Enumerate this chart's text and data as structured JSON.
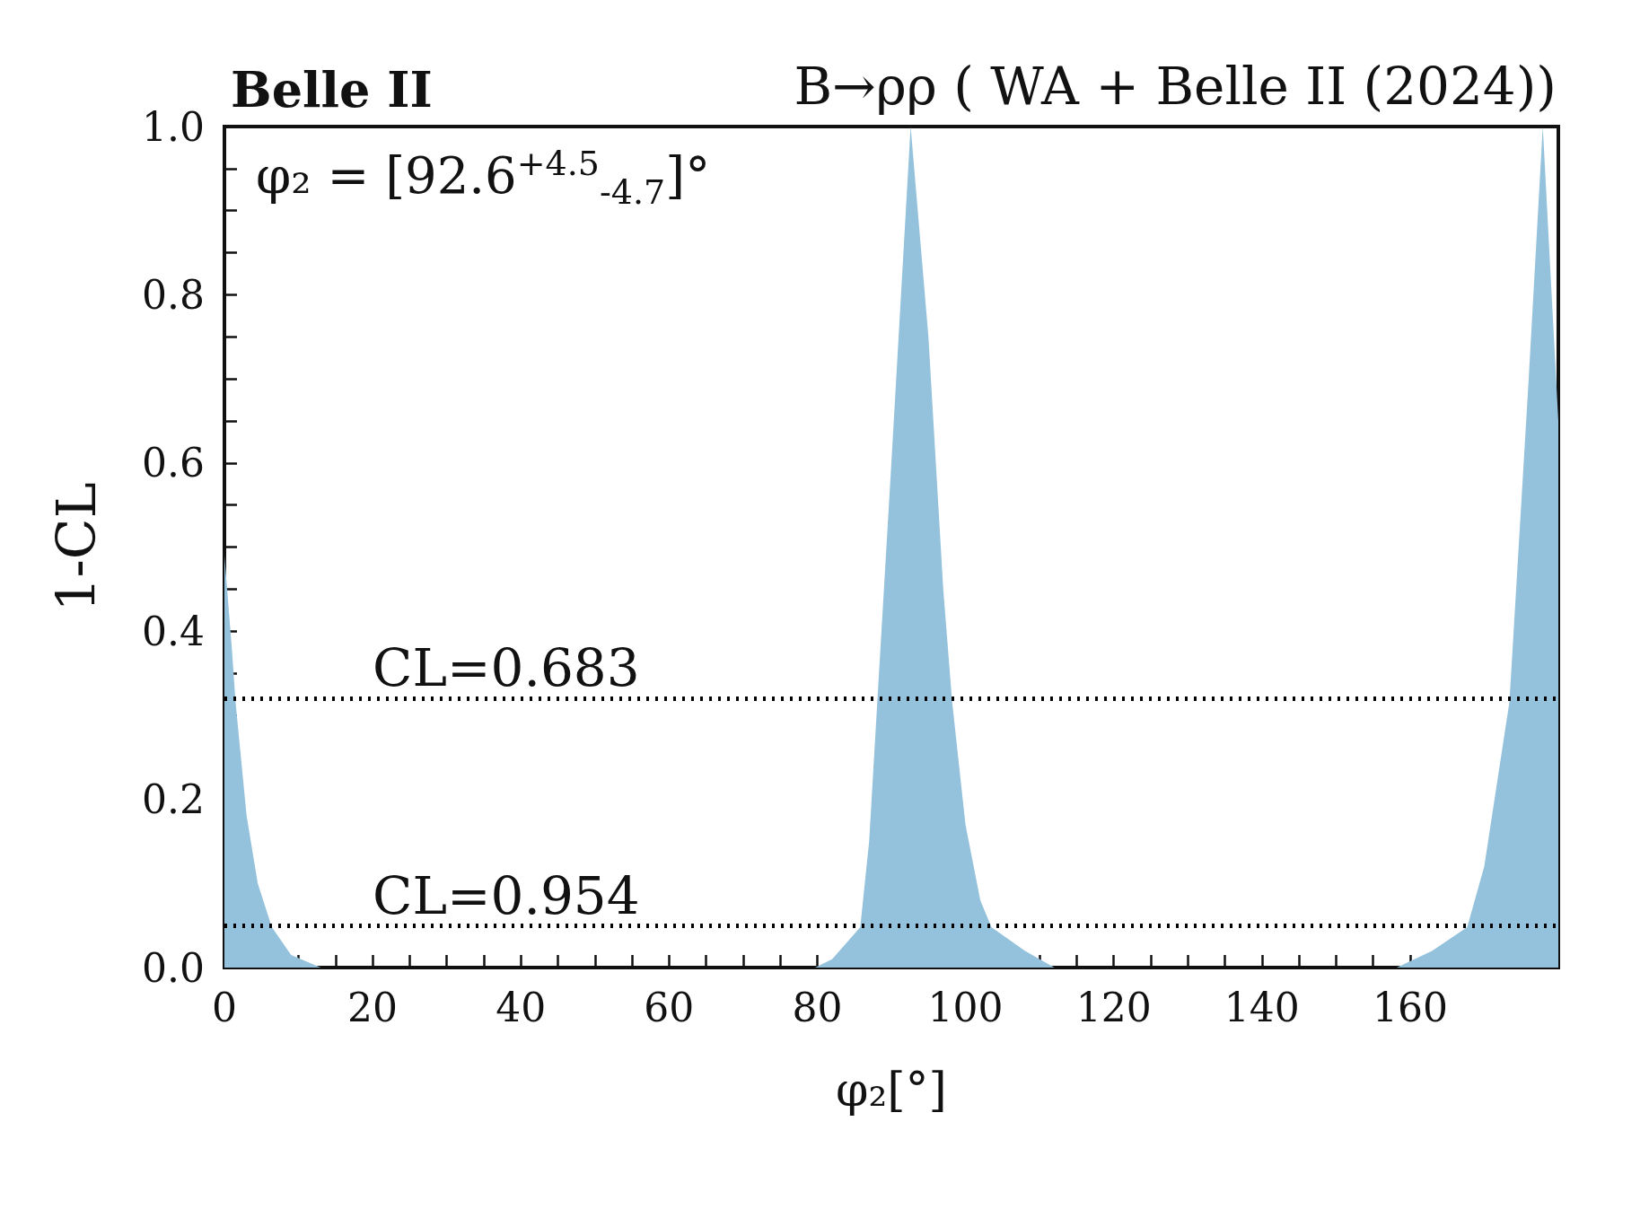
{
  "chart_data": {
    "type": "area",
    "title": "Belle II",
    "subtitle": "B→ρρ ( WA + Belle II (2024))",
    "xlabel": "φ₂[°]",
    "ylabel": "1-CL",
    "annotations": [
      "φ₂ = [92.6$^{+4.5}$$_{-4.7}$]°",
      {
        "text": "CL=0.683",
        "x": 20,
        "y": 0.317
      },
      {
        "text": "CL=0.954",
        "x": 20,
        "y": 0.046
      }
    ],
    "x": [
      0,
      1,
      1.5,
      3,
      4.5,
      6.4,
      9,
      13,
      79.7,
      82,
      84,
      85.8,
      87,
      88.1,
      90,
      92.6,
      95,
      97,
      98.2,
      100,
      102,
      103.5,
      108,
      112,
      158.2,
      163,
      167.7,
      170,
      173.4,
      176,
      177.9,
      180
    ],
    "series": [
      {
        "color": "#94c2dc",
        "values": [
          0.49,
          0.38,
          0.316,
          0.18,
          0.1,
          0.048,
          0.015,
          0,
          0,
          0.01,
          0.03,
          0.048,
          0.15,
          0.316,
          0.6,
          1.0,
          0.75,
          0.45,
          0.316,
          0.17,
          0.08,
          0.048,
          0.02,
          0,
          0,
          0.02,
          0.048,
          0.12,
          0.316,
          0.7,
          1.0,
          0.65
        ]
      }
    ],
    "xlim": [
      0,
      180
    ],
    "xticks": [
      0,
      {
        "value": 5,
        "label": null
      },
      {
        "value": 10,
        "label": null
      },
      {
        "value": 15,
        "label": null
      },
      20,
      {
        "value": 25,
        "label": null
      },
      {
        "value": 30,
        "label": null
      },
      {
        "value": 35,
        "label": null
      },
      40,
      {
        "value": 45,
        "label": null
      },
      {
        "value": 50,
        "label": null
      },
      {
        "value": 55,
        "label": null
      },
      60,
      {
        "value": 65,
        "label": null
      },
      {
        "value": 70,
        "label": null
      },
      {
        "value": 75,
        "label": null
      },
      80,
      {
        "value": 85,
        "label": null
      },
      {
        "value": 90,
        "label": null
      },
      {
        "value": 95,
        "label": null
      },
      100,
      {
        "value": 105,
        "label": null
      },
      {
        "value": 110,
        "label": null
      },
      {
        "value": 115,
        "label": null
      },
      120,
      {
        "value": 125,
        "label": null
      },
      {
        "value": 130,
        "label": null
      },
      {
        "value": 135,
        "label": null
      },
      140,
      {
        "value": 145,
        "label": null
      },
      {
        "value": 150,
        "label": null
      },
      {
        "value": 155,
        "label": null
      },
      160,
      {
        "value": 165,
        "label": null
      },
      {
        "value": 170,
        "label": null
      },
      {
        "value": 175,
        "label": null
      }
    ],
    "ylim": [
      0,
      1
    ],
    "yticks": [
      {
        "value": 0,
        "label": "0.0"
      },
      {
        "value": 0.05,
        "label": null
      },
      {
        "value": 0.1,
        "label": null
      },
      {
        "value": 0.15,
        "label": null
      },
      0.2,
      {
        "value": 0.25,
        "label": null
      },
      {
        "value": 0.3,
        "label": null
      },
      {
        "value": 0.35,
        "label": null
      },
      0.4,
      {
        "value": 0.45,
        "label": null
      },
      {
        "value": 0.5,
        "label": null
      },
      {
        "value": 0.55,
        "label": null
      },
      0.6,
      {
        "value": 0.65,
        "label": null
      },
      {
        "value": 0.7,
        "label": null
      },
      {
        "value": 0.75,
        "label": null
      },
      0.8,
      {
        "value": 0.85,
        "label": null
      },
      {
        "value": 0.9,
        "label": null
      },
      {
        "value": 0.95,
        "label": null
      },
      {
        "value": 1,
        "label": "1.0"
      }
    ],
    "ref_lines": [
      {
        "axis": "y",
        "value": 0.317,
        "line_style": "dotted",
        "color": "#000000"
      },
      {
        "axis": "y",
        "value": 0.046,
        "line_style": "dotted",
        "color": "#000000"
      }
    ]
  }
}
